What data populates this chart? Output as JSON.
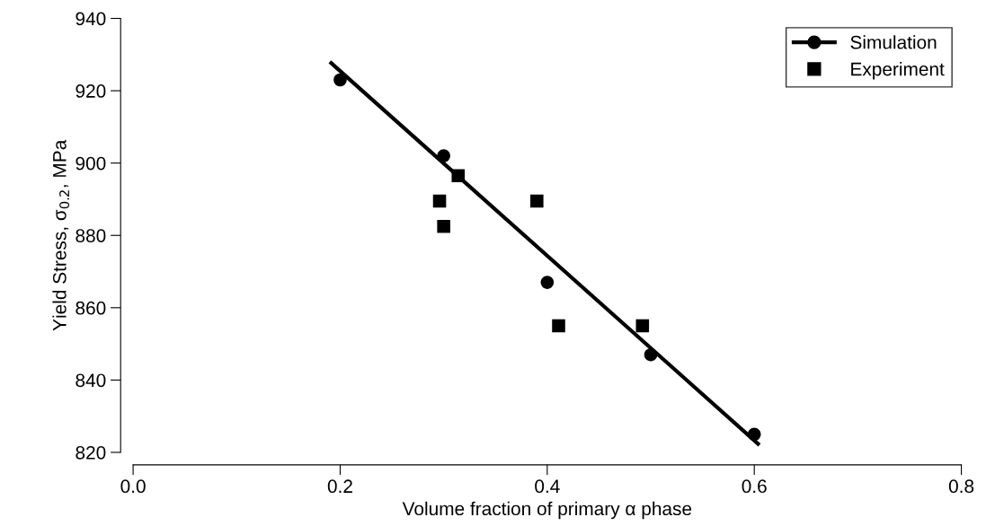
{
  "chart_data": {
    "type": "scatter",
    "xlabel": "Volume fraction of primary α phase",
    "ylabel": "Yield Stress, σ$_{0.2}$, MPa",
    "xlim": [
      0,
      0.8
    ],
    "xticks": [
      {
        "value": 0,
        "label": "0.0"
      },
      0.2,
      0.4,
      0.6,
      0.8
    ],
    "ylim": [
      820,
      940
    ],
    "yticks": [
      820,
      840,
      860,
      880,
      900,
      920,
      940
    ],
    "grid": false,
    "legend": "top right",
    "series": [
      {
        "name": "Simulation",
        "marker": "circle",
        "color": "#000000",
        "x": [
          0.2,
          0.3,
          0.4,
          0.5,
          0.6
        ],
        "values": [
          923,
          902,
          867,
          847,
          825
        ]
      },
      {
        "name": "Experiment",
        "marker": "square",
        "color": "#000000",
        "x": [
          0.296,
          0.3,
          0.314,
          0.39,
          0.411,
          0.492
        ],
        "values": [
          889.5,
          882.5,
          896.5,
          889.5,
          855,
          855
        ]
      },
      {
        "type": "line",
        "marker": "none",
        "line_style": "solid",
        "color": "#000000",
        "x": [
          0.19,
          0.605
        ],
        "values": [
          928,
          822
        ]
      }
    ]
  }
}
